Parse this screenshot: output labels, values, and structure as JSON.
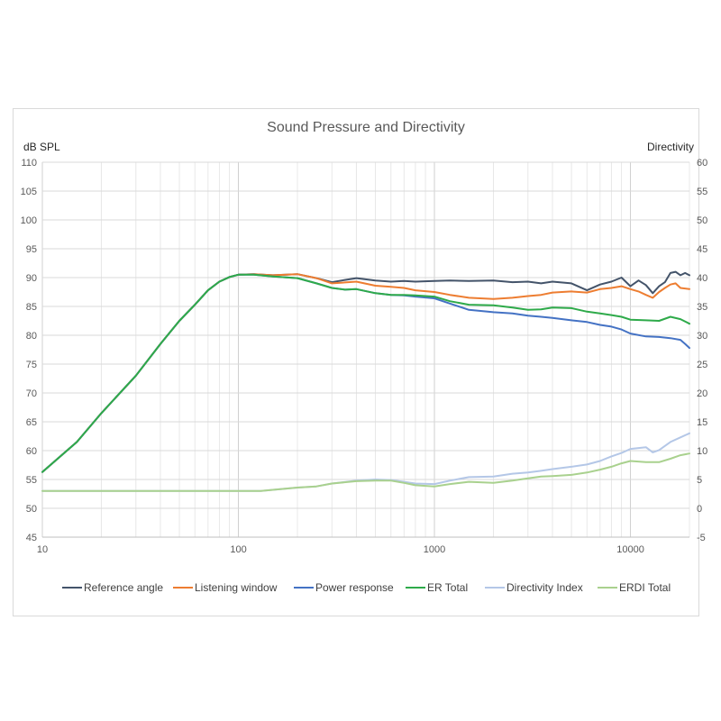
{
  "chart_data": {
    "type": "line",
    "title": "Sound Pressure and Directivity",
    "ylabel": "dB SPL",
    "y2label": "Directivity",
    "xscale": "log",
    "xlim": [
      10,
      20000
    ],
    "ylim": [
      45,
      110
    ],
    "y2lim": [
      -5,
      60
    ],
    "x_ticks": [
      "10",
      "100",
      "1000",
      "10000"
    ],
    "y_ticks": [
      "45",
      "50",
      "55",
      "60",
      "65",
      "70",
      "75",
      "80",
      "85",
      "90",
      "95",
      "100",
      "105",
      "110"
    ],
    "y2_ticks": [
      "-5",
      "0",
      "5",
      "10",
      "15",
      "20",
      "25",
      "30",
      "35",
      "40",
      "45",
      "50",
      "55",
      "60"
    ],
    "grid": true,
    "legend_position": "bottom",
    "series": [
      {
        "name": "Reference angle",
        "color": "#44546a",
        "axis": "left",
        "points": [
          [
            10,
            56.3
          ],
          [
            15,
            61.5
          ],
          [
            20,
            66.5
          ],
          [
            30,
            73
          ],
          [
            40,
            78.5
          ],
          [
            50,
            82.5
          ],
          [
            60,
            85.3
          ],
          [
            70,
            87.8
          ],
          [
            80,
            89.3
          ],
          [
            90,
            90.1
          ],
          [
            100,
            90.5
          ],
          [
            120,
            90.6
          ],
          [
            150,
            90.4
          ],
          [
            200,
            90.6
          ],
          [
            250,
            89.9
          ],
          [
            300,
            89.2
          ],
          [
            350,
            89.6
          ],
          [
            400,
            89.9
          ],
          [
            500,
            89.5
          ],
          [
            600,
            89.3
          ],
          [
            700,
            89.4
          ],
          [
            800,
            89.3
          ],
          [
            1000,
            89.4
          ],
          [
            1200,
            89.5
          ],
          [
            1500,
            89.4
          ],
          [
            2000,
            89.5
          ],
          [
            2500,
            89.2
          ],
          [
            3000,
            89.3
          ],
          [
            3500,
            89.0
          ],
          [
            4000,
            89.3
          ],
          [
            5000,
            89.0
          ],
          [
            6000,
            87.8
          ],
          [
            7000,
            88.8
          ],
          [
            8000,
            89.3
          ],
          [
            9000,
            90.0
          ],
          [
            10000,
            88.5
          ],
          [
            11000,
            89.5
          ],
          [
            12000,
            88.7
          ],
          [
            13000,
            87.3
          ],
          [
            14000,
            88.5
          ],
          [
            15000,
            89.2
          ],
          [
            16000,
            90.8
          ],
          [
            17000,
            91.0
          ],
          [
            18000,
            90.4
          ],
          [
            19000,
            90.8
          ],
          [
            20000,
            90.4
          ]
        ]
      },
      {
        "name": "Listening window",
        "color": "#ed7d31",
        "axis": "left",
        "points": [
          [
            10,
            56.3
          ],
          [
            15,
            61.5
          ],
          [
            20,
            66.5
          ],
          [
            30,
            73
          ],
          [
            40,
            78.5
          ],
          [
            50,
            82.5
          ],
          [
            60,
            85.3
          ],
          [
            70,
            87.8
          ],
          [
            80,
            89.3
          ],
          [
            90,
            90.1
          ],
          [
            100,
            90.5
          ],
          [
            120,
            90.6
          ],
          [
            150,
            90.4
          ],
          [
            200,
            90.6
          ],
          [
            250,
            89.9
          ],
          [
            300,
            89.0
          ],
          [
            400,
            89.3
          ],
          [
            500,
            88.6
          ],
          [
            600,
            88.4
          ],
          [
            700,
            88.2
          ],
          [
            800,
            87.8
          ],
          [
            1000,
            87.5
          ],
          [
            1200,
            87.0
          ],
          [
            1500,
            86.5
          ],
          [
            2000,
            86.3
          ],
          [
            2500,
            86.5
          ],
          [
            3000,
            86.8
          ],
          [
            3500,
            87.0
          ],
          [
            4000,
            87.4
          ],
          [
            5000,
            87.6
          ],
          [
            6000,
            87.4
          ],
          [
            7000,
            88.0
          ],
          [
            8000,
            88.2
          ],
          [
            9000,
            88.5
          ],
          [
            10000,
            88.0
          ],
          [
            11000,
            87.6
          ],
          [
            12000,
            87.0
          ],
          [
            13000,
            86.5
          ],
          [
            14000,
            87.5
          ],
          [
            15000,
            88.2
          ],
          [
            16000,
            88.8
          ],
          [
            17000,
            89.0
          ],
          [
            18000,
            88.2
          ],
          [
            20000,
            88.0
          ]
        ]
      },
      {
        "name": "Power response",
        "color": "#4472c4",
        "axis": "left",
        "points": [
          [
            10,
            56.3
          ],
          [
            15,
            61.5
          ],
          [
            20,
            66.5
          ],
          [
            30,
            73
          ],
          [
            40,
            78.5
          ],
          [
            50,
            82.5
          ],
          [
            60,
            85.3
          ],
          [
            70,
            87.8
          ],
          [
            80,
            89.3
          ],
          [
            90,
            90.1
          ],
          [
            100,
            90.5
          ],
          [
            120,
            90.5
          ],
          [
            150,
            90.2
          ],
          [
            200,
            89.9
          ],
          [
            250,
            89.0
          ],
          [
            300,
            88.2
          ],
          [
            350,
            87.9
          ],
          [
            400,
            88.0
          ],
          [
            500,
            87.3
          ],
          [
            600,
            87.0
          ],
          [
            700,
            86.9
          ],
          [
            800,
            86.7
          ],
          [
            1000,
            86.4
          ],
          [
            1200,
            85.5
          ],
          [
            1500,
            84.4
          ],
          [
            2000,
            84.0
          ],
          [
            2500,
            83.8
          ],
          [
            3000,
            83.4
          ],
          [
            3500,
            83.2
          ],
          [
            4000,
            83.0
          ],
          [
            5000,
            82.6
          ],
          [
            6000,
            82.3
          ],
          [
            7000,
            81.8
          ],
          [
            8000,
            81.5
          ],
          [
            9000,
            81.0
          ],
          [
            10000,
            80.3
          ],
          [
            12000,
            79.8
          ],
          [
            14000,
            79.7
          ],
          [
            16000,
            79.5
          ],
          [
            18000,
            79.2
          ],
          [
            19000,
            78.5
          ],
          [
            20000,
            77.8
          ]
        ]
      },
      {
        "name": "ER Total",
        "color": "#2eaa4a",
        "axis": "left",
        "points": [
          [
            10,
            56.3
          ],
          [
            15,
            61.5
          ],
          [
            20,
            66.5
          ],
          [
            30,
            73
          ],
          [
            40,
            78.5
          ],
          [
            50,
            82.5
          ],
          [
            60,
            85.3
          ],
          [
            70,
            87.8
          ],
          [
            80,
            89.3
          ],
          [
            90,
            90.1
          ],
          [
            100,
            90.5
          ],
          [
            120,
            90.5
          ],
          [
            150,
            90.2
          ],
          [
            200,
            89.9
          ],
          [
            250,
            89.0
          ],
          [
            300,
            88.2
          ],
          [
            350,
            87.9
          ],
          [
            400,
            88.0
          ],
          [
            500,
            87.3
          ],
          [
            600,
            87.0
          ],
          [
            700,
            87.0
          ],
          [
            800,
            86.9
          ],
          [
            1000,
            86.7
          ],
          [
            1200,
            85.9
          ],
          [
            1500,
            85.3
          ],
          [
            2000,
            85.2
          ],
          [
            2500,
            84.8
          ],
          [
            3000,
            84.4
          ],
          [
            3500,
            84.5
          ],
          [
            4000,
            84.8
          ],
          [
            5000,
            84.7
          ],
          [
            6000,
            84.1
          ],
          [
            7000,
            83.8
          ],
          [
            8000,
            83.5
          ],
          [
            9000,
            83.2
          ],
          [
            10000,
            82.7
          ],
          [
            12000,
            82.6
          ],
          [
            14000,
            82.5
          ],
          [
            16000,
            83.2
          ],
          [
            18000,
            82.8
          ],
          [
            20000,
            82.0
          ]
        ]
      },
      {
        "name": "Directivity Index",
        "color": "#b4c7e7",
        "axis": "right",
        "points": [
          [
            10,
            3.0
          ],
          [
            20,
            3.0
          ],
          [
            50,
            3.0
          ],
          [
            100,
            3.0
          ],
          [
            130,
            3.0
          ],
          [
            150,
            3.2
          ],
          [
            200,
            3.6
          ],
          [
            250,
            3.8
          ],
          [
            300,
            4.3
          ],
          [
            400,
            4.8
          ],
          [
            500,
            5.0
          ],
          [
            600,
            4.9
          ],
          [
            700,
            4.6
          ],
          [
            800,
            4.3
          ],
          [
            1000,
            4.2
          ],
          [
            1200,
            4.8
          ],
          [
            1500,
            5.4
          ],
          [
            2000,
            5.5
          ],
          [
            2500,
            6.0
          ],
          [
            3000,
            6.2
          ],
          [
            3500,
            6.5
          ],
          [
            4000,
            6.8
          ],
          [
            5000,
            7.2
          ],
          [
            6000,
            7.6
          ],
          [
            7000,
            8.2
          ],
          [
            8000,
            9.0
          ],
          [
            9000,
            9.6
          ],
          [
            10000,
            10.3
          ],
          [
            12000,
            10.6
          ],
          [
            13000,
            9.7
          ],
          [
            14000,
            10.1
          ],
          [
            16000,
            11.5
          ],
          [
            18000,
            12.3
          ],
          [
            20000,
            13.0
          ]
        ]
      },
      {
        "name": "ERDI Total",
        "color": "#a9d18e",
        "axis": "right",
        "points": [
          [
            10,
            3.0
          ],
          [
            20,
            3.0
          ],
          [
            50,
            3.0
          ],
          [
            100,
            3.0
          ],
          [
            130,
            3.0
          ],
          [
            150,
            3.2
          ],
          [
            200,
            3.6
          ],
          [
            250,
            3.8
          ],
          [
            300,
            4.3
          ],
          [
            400,
            4.7
          ],
          [
            500,
            4.8
          ],
          [
            600,
            4.8
          ],
          [
            700,
            4.4
          ],
          [
            800,
            4.0
          ],
          [
            1000,
            3.8
          ],
          [
            1200,
            4.2
          ],
          [
            1500,
            4.6
          ],
          [
            2000,
            4.4
          ],
          [
            2500,
            4.8
          ],
          [
            3000,
            5.2
          ],
          [
            3500,
            5.5
          ],
          [
            4000,
            5.6
          ],
          [
            5000,
            5.8
          ],
          [
            6000,
            6.2
          ],
          [
            7000,
            6.7
          ],
          [
            8000,
            7.2
          ],
          [
            9000,
            7.8
          ],
          [
            10000,
            8.2
          ],
          [
            12000,
            8.0
          ],
          [
            14000,
            8.0
          ],
          [
            16000,
            8.6
          ],
          [
            18000,
            9.2
          ],
          [
            20000,
            9.5
          ]
        ]
      }
    ]
  }
}
